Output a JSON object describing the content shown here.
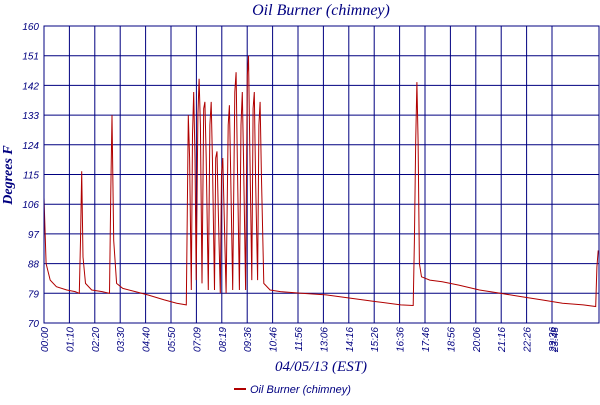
{
  "chart_data": {
    "type": "line",
    "title": "Oil Burner (chimney)",
    "xlabel": "04/05/13 (EST)",
    "ylabel": "Degrees F",
    "ylim": [
      70,
      160
    ],
    "yticks": [
      "70",
      "79",
      "88",
      "97",
      "106",
      "115",
      "124",
      "133",
      "142",
      "151",
      "160"
    ],
    "xticks": [
      "00:00",
      "01:10",
      "02:20",
      "03:30",
      "04:40",
      "05:50",
      "07:09",
      "08:19",
      "09:36",
      "10:46",
      "11:56",
      "13:06",
      "14:16",
      "15:26",
      "16:36",
      "17:46",
      "18:56",
      "20:06",
      "21:16",
      "22:26",
      "23:36",
      "23:48"
    ],
    "grid": true,
    "legend_position": "bottom",
    "series": [
      {
        "name": "Oil Burner (chimney)",
        "color": "#b00000",
        "points": [
          [
            0,
            108
          ],
          [
            5,
            88
          ],
          [
            15,
            83
          ],
          [
            30,
            81
          ],
          [
            55,
            80
          ],
          [
            75,
            79.5
          ],
          [
            85,
            79
          ],
          [
            88,
            95
          ],
          [
            91,
            116
          ],
          [
            94,
            90
          ],
          [
            100,
            82
          ],
          [
            115,
            80
          ],
          [
            140,
            79.5
          ],
          [
            158,
            79
          ],
          [
            161,
            110
          ],
          [
            164,
            133
          ],
          [
            168,
            95
          ],
          [
            175,
            82
          ],
          [
            190,
            80.5
          ],
          [
            220,
            79.5
          ],
          [
            250,
            78.5
          ],
          [
            290,
            77
          ],
          [
            320,
            76
          ],
          [
            343,
            75.5
          ],
          [
            345,
            98
          ],
          [
            348,
            133
          ],
          [
            351,
            120
          ],
          [
            355,
            80
          ],
          [
            358,
            127
          ],
          [
            361,
            140
          ],
          [
            364,
            120
          ],
          [
            367,
            83
          ],
          [
            371,
            133
          ],
          [
            374,
            144
          ],
          [
            377,
            130
          ],
          [
            381,
            82
          ],
          [
            385,
            135
          ],
          [
            388,
            137
          ],
          [
            391,
            120
          ],
          [
            396,
            80
          ],
          [
            400,
            130
          ],
          [
            403,
            137
          ],
          [
            406,
            120
          ],
          [
            411,
            80
          ],
          [
            414,
            120
          ],
          [
            417,
            122
          ],
          [
            420,
            105
          ],
          [
            425,
            79
          ],
          [
            428,
            115
          ],
          [
            431,
            120
          ],
          [
            434,
            105
          ],
          [
            439,
            79
          ],
          [
            444,
            130
          ],
          [
            447,
            136
          ],
          [
            450,
            115
          ],
          [
            455,
            80
          ],
          [
            460,
            140
          ],
          [
            463,
            146
          ],
          [
            466,
            120
          ],
          [
            471,
            80
          ],
          [
            475,
            130
          ],
          [
            478,
            140
          ],
          [
            481,
            120
          ],
          [
            486,
            80
          ],
          [
            490,
            145
          ],
          [
            493,
            151
          ],
          [
            496,
            125
          ],
          [
            501,
            83
          ],
          [
            504,
            135
          ],
          [
            507,
            140
          ],
          [
            510,
            115
          ],
          [
            515,
            83
          ],
          [
            518,
            130
          ],
          [
            521,
            137
          ],
          [
            524,
            115
          ],
          [
            530,
            82
          ],
          [
            545,
            80
          ],
          [
            570,
            79.5
          ],
          [
            620,
            79
          ],
          [
            680,
            78.5
          ],
          [
            740,
            77.5
          ],
          [
            800,
            76.5
          ],
          [
            860,
            75.5
          ],
          [
            890,
            75.3
          ],
          [
            893,
            95
          ],
          [
            896,
            125
          ],
          [
            899,
            143
          ],
          [
            902,
            125
          ],
          [
            905,
            88
          ],
          [
            910,
            84
          ],
          [
            930,
            83
          ],
          [
            960,
            82.5
          ],
          [
            1000,
            81.5
          ],
          [
            1050,
            80
          ],
          [
            1100,
            79
          ],
          [
            1150,
            78
          ],
          [
            1200,
            77
          ],
          [
            1250,
            76
          ],
          [
            1300,
            75.5
          ],
          [
            1330,
            75
          ],
          [
            1333,
            87
          ],
          [
            1336,
            92
          ]
        ]
      }
    ]
  }
}
